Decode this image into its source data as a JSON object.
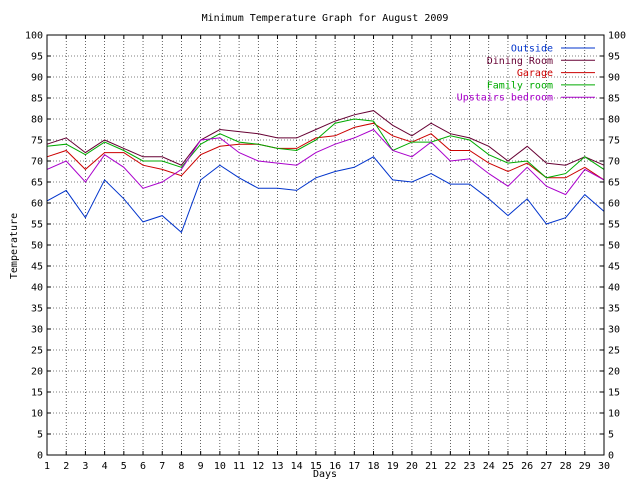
{
  "chart_data": {
    "type": "line",
    "title": "Minimum Temperature Graph for August 2009",
    "xlabel": "Days",
    "ylabel": "Temperature",
    "ylim": [
      0,
      100
    ],
    "xlim": [
      1,
      30
    ],
    "y_ticks": [
      0,
      5,
      10,
      15,
      20,
      25,
      30,
      35,
      40,
      45,
      50,
      55,
      60,
      65,
      70,
      75,
      80,
      85,
      90,
      95,
      100
    ],
    "x_ticks": [
      1,
      2,
      3,
      4,
      5,
      6,
      7,
      8,
      9,
      10,
      11,
      12,
      13,
      14,
      15,
      16,
      17,
      18,
      19,
      20,
      21,
      22,
      23,
      24,
      25,
      26,
      27,
      28,
      29,
      30
    ],
    "grid": true,
    "legend_position": "top-right",
    "x": [
      1,
      2,
      3,
      4,
      5,
      6,
      7,
      8,
      9,
      10,
      11,
      12,
      13,
      14,
      15,
      16,
      17,
      18,
      19,
      20,
      21,
      22,
      23,
      24,
      25,
      26,
      27,
      28,
      29,
      30
    ],
    "series": [
      {
        "name": "Outside",
        "color": "#0033cc",
        "values": [
          60.5,
          63,
          56.5,
          65.5,
          61,
          55.5,
          57,
          53,
          65.5,
          69,
          66,
          63.5,
          63.5,
          63,
          66,
          67.5,
          68.5,
          71,
          65.5,
          65,
          67,
          64.5,
          64.5,
          61,
          57,
          61,
          55,
          56.5,
          62,
          58
        ]
      },
      {
        "name": "Dining Room",
        "color": "#660033",
        "values": [
          74,
          75.5,
          72,
          75,
          73,
          71,
          71,
          69,
          75,
          77.5,
          77,
          76.5,
          75.5,
          75.5,
          77.5,
          79.5,
          81,
          82,
          78.5,
          76,
          79,
          76.5,
          75.5,
          73.5,
          70,
          73.5,
          69.5,
          69,
          71,
          69
        ]
      },
      {
        "name": "Garage",
        "color": "#cc0000",
        "values": [
          71,
          72.5,
          68,
          72,
          72,
          69,
          68,
          66.5,
          71.5,
          73.5,
          74,
          74,
          73,
          73,
          75.5,
          76,
          78,
          79,
          76,
          74.5,
          76.5,
          72.5,
          72.5,
          69.5,
          67.5,
          69.5,
          66,
          66,
          68.5,
          65.5
        ]
      },
      {
        "name": "Family room",
        "color": "#00aa00",
        "values": [
          73.5,
          74,
          71.5,
          74.5,
          72.5,
          70,
          70,
          68.5,
          74,
          76.5,
          74.5,
          74,
          73,
          72.5,
          75,
          79,
          80,
          79.5,
          72.5,
          74.5,
          74.5,
          76,
          75,
          71.5,
          69.5,
          70,
          66,
          67,
          71,
          68
        ]
      },
      {
        "name": "Upstairs bedroom",
        "color": "#aa00cc",
        "values": [
          68,
          70,
          65,
          71.5,
          68.5,
          63.5,
          65,
          68,
          75,
          75.5,
          72,
          70,
          69.5,
          69,
          72,
          74,
          75.5,
          77.5,
          72.5,
          71,
          74.5,
          70,
          70.5,
          67,
          64,
          68.5,
          64,
          62,
          68,
          65.5
        ]
      }
    ]
  }
}
